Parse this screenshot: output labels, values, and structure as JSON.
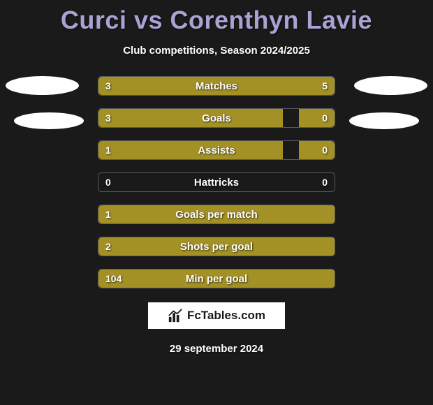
{
  "header": {
    "title": "Curci vs Corenthyn Lavie",
    "subtitle": "Club competitions, Season 2024/2025"
  },
  "colors": {
    "background": "#1a1a1a",
    "bar_fill": "#a39126",
    "title_color": "#a9a3d4",
    "text_color": "#ffffff",
    "badge_color": "#ffffff"
  },
  "stats": [
    {
      "label": "Matches",
      "left_val": "3",
      "right_val": "5",
      "left_pct": 37.5,
      "right_pct": 62.5
    },
    {
      "label": "Goals",
      "left_val": "3",
      "right_val": "0",
      "left_pct": 78,
      "right_pct": 15
    },
    {
      "label": "Assists",
      "left_val": "1",
      "right_val": "0",
      "left_pct": 78,
      "right_pct": 15
    },
    {
      "label": "Hattricks",
      "left_val": "0",
      "right_val": "0",
      "left_pct": 0,
      "right_pct": 0
    },
    {
      "label": "Goals per match",
      "left_val": "1",
      "right_val": "",
      "left_pct": 100,
      "right_pct": 0
    },
    {
      "label": "Shots per goal",
      "left_val": "2",
      "right_val": "",
      "left_pct": 100,
      "right_pct": 0
    },
    {
      "label": "Min per goal",
      "left_val": "104",
      "right_val": "",
      "left_pct": 100,
      "right_pct": 0
    }
  ],
  "branding": {
    "logo_label": "FcTables.com"
  },
  "footer": {
    "date": "29 september 2024"
  }
}
